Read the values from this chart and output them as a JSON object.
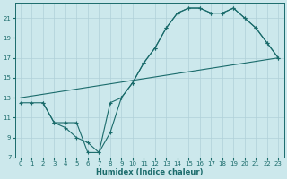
{
  "xlabel": "Humidex (Indice chaleur)",
  "bg_color": "#cce8ec",
  "grid_color": "#b0d0d8",
  "line_color": "#1a6b6b",
  "xlim": [
    -0.5,
    23.5
  ],
  "ylim": [
    7,
    22.5
  ],
  "xticks": [
    0,
    1,
    2,
    3,
    4,
    5,
    6,
    7,
    8,
    9,
    10,
    11,
    12,
    13,
    14,
    15,
    16,
    17,
    18,
    19,
    20,
    21,
    22,
    23
  ],
  "yticks": [
    7,
    9,
    11,
    13,
    15,
    17,
    19,
    21
  ],
  "line1_x": [
    0,
    1,
    2,
    3,
    4,
    5,
    6,
    7,
    8,
    9,
    10,
    11,
    12,
    13,
    14,
    15,
    16,
    17,
    18,
    19,
    20,
    21,
    22,
    23
  ],
  "line1_y": [
    12.5,
    12.5,
    12.5,
    10.5,
    10.5,
    10.5,
    7.5,
    7.5,
    9.5,
    13.0,
    14.5,
    16.5,
    18.0,
    20.0,
    21.5,
    22.0,
    22.0,
    21.5,
    21.5,
    22.0,
    21.0,
    20.0,
    18.5,
    17.0
  ],
  "line2_x": [
    2,
    3,
    4,
    5,
    6,
    7,
    8,
    9,
    10,
    11,
    12,
    13,
    14,
    15,
    16,
    17,
    18,
    19,
    20,
    21,
    22,
    23
  ],
  "line2_y": [
    12.5,
    10.5,
    10.0,
    9.0,
    8.5,
    7.5,
    12.5,
    13.0,
    14.5,
    16.5,
    18.0,
    20.0,
    21.5,
    22.0,
    22.0,
    21.5,
    21.5,
    22.0,
    21.0,
    20.0,
    18.5,
    17.0
  ],
  "line3_x": [
    0,
    23
  ],
  "line3_y": [
    13.0,
    17.0
  ]
}
